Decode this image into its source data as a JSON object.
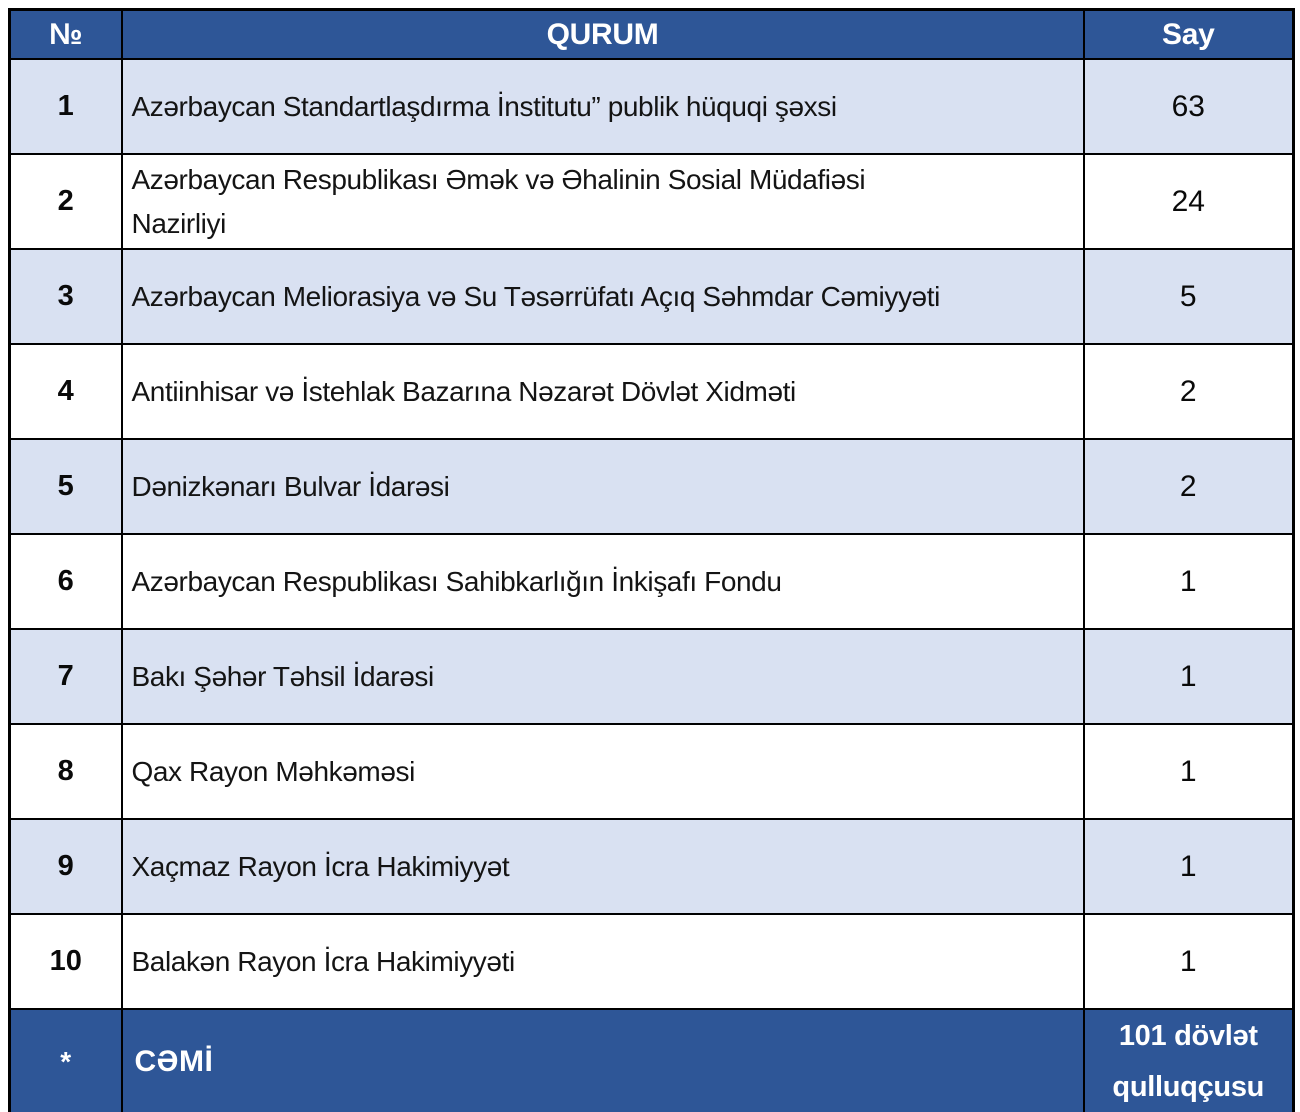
{
  "colors": {
    "header_bg": "#2E5697",
    "stripe_bg": "#D9E1F2",
    "row_bg": "#FFFFFF",
    "border": "#000000",
    "header_text": "#FFFFFF",
    "body_text": "#141414"
  },
  "table": {
    "header": {
      "no": "№",
      "qurum": "QURUM",
      "say": "Say"
    },
    "rows": [
      {
        "no": "1",
        "qurum": "Azərbaycan Standartlaşdırma İnstitutu” publik hüquqi şəxsi",
        "say": "63"
      },
      {
        "no": "2",
        "qurum": "Azərbaycan Respublikası Əmək və Əhalinin Sosial Müdafiəsi\nNazirliyi",
        "say": "24"
      },
      {
        "no": "3",
        "qurum": "Azərbaycan Meliorasiya və Su Təsərrüfatı Açıq Səhmdar Cəmiyyəti",
        "say": "5"
      },
      {
        "no": "4",
        "qurum": "Antiinhisar və İstehlak Bazarına Nəzarət Dövlət Xidməti",
        "say": "2"
      },
      {
        "no": "5",
        "qurum": "Dənizkənarı Bulvar İdarəsi",
        "say": "2"
      },
      {
        "no": "6",
        "qurum": "Azərbaycan Respublikası Sahibkarlığın İnkişafı Fondu",
        "say": "1"
      },
      {
        "no": "7",
        "qurum": "Bakı Şəhər Təhsil İdarəsi",
        "say": "1"
      },
      {
        "no": "8",
        "qurum": "Qax Rayon Məhkəməsi",
        "say": "1"
      },
      {
        "no": "9",
        "qurum": "Xaçmaz Rayon İcra Hakimiyyət",
        "say": "1"
      },
      {
        "no": "10",
        "qurum": "Balakən Rayon İcra Hakimiyyəti",
        "say": "1"
      }
    ],
    "footer": {
      "no": "*",
      "label": "CƏMİ",
      "total": "101 dövlət\nqulluqçusu"
    }
  }
}
